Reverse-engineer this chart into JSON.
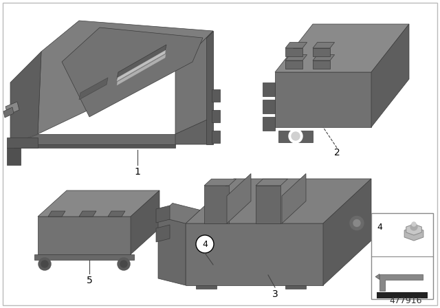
{
  "background_color": "#ffffff",
  "border_color": "#bbbbbb",
  "part_number": "477916",
  "text_color": "#000000",
  "label_fontsize": 10,
  "part_number_fontsize": 9,
  "gray1": "#7a7a7a",
  "gray2": "#8a8a8a",
  "gray3": "#606060",
  "gray4": "#9a9a9a",
  "gray5": "#555555",
  "gray6": "#b0b0b0",
  "edge_color": "#3a3a3a"
}
